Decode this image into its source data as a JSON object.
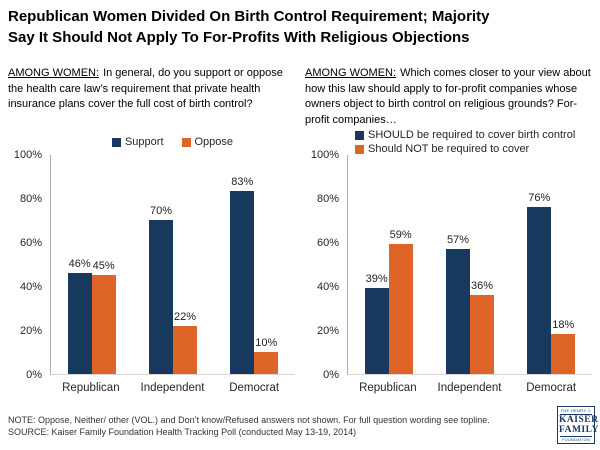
{
  "title_lines": [
    "Republican Women Divided On Birth Control Requirement; Majority",
    "Say It Should Not Apply To For-Profits With Religious Objections"
  ],
  "colors": {
    "navy": "#17395D",
    "orange": "#DF6428",
    "axis_line": "#ADADAD",
    "baseline": "#D6D6D6"
  },
  "chart_data": [
    {
      "type": "bar",
      "question_prefix": "AMONG WOMEN:",
      "question_text": "In general, do you support or oppose the health care law’s requirement that private health insurance plans cover the full cost of birth control?",
      "categories": [
        "Republican",
        "Independent",
        "Democrat"
      ],
      "series": [
        {
          "name": "Support",
          "color": "#17395D",
          "values": [
            46,
            70,
            83
          ]
        },
        {
          "name": "Oppose",
          "color": "#DF6428",
          "values": [
            45,
            22,
            10
          ]
        }
      ],
      "value_suffix": "%",
      "ylim": [
        0,
        100
      ],
      "yticks": [
        0,
        20,
        40,
        60,
        80,
        100
      ],
      "grid": false,
      "legend_position": "top-center"
    },
    {
      "type": "bar",
      "question_prefix": "AMONG WOMEN:",
      "question_text": "Which comes closer to your view about how this law should apply to for-profit companies whose owners object to birth control on religious grounds? For-profit companies…",
      "categories": [
        "Republican",
        "Independent",
        "Democrat"
      ],
      "series": [
        {
          "name": "SHOULD be required to cover birth control",
          "color": "#17395D",
          "values": [
            39,
            57,
            76
          ]
        },
        {
          "name": "Should NOT be required to cover",
          "color": "#DF6428",
          "values": [
            59,
            36,
            18
          ]
        }
      ],
      "value_suffix": "%",
      "ylim": [
        0,
        100
      ],
      "yticks": [
        0,
        20,
        40,
        60,
        80,
        100
      ],
      "grid": false,
      "legend_position": "top-left-stacked"
    }
  ],
  "footer": {
    "note": "NOTE: Oppose, Neither/ other (VOL.) and Don’t know/Refused answers not shown. For full question wording see topline.",
    "source": "SOURCE: Kaiser Family Foundation Health Tracking Poll (conducted May 13-19, 2014)"
  },
  "logo": {
    "top": "THE HENRY J.",
    "name1": "KAISER",
    "name2": "FAMILY",
    "bottom": "FOUNDATION"
  }
}
